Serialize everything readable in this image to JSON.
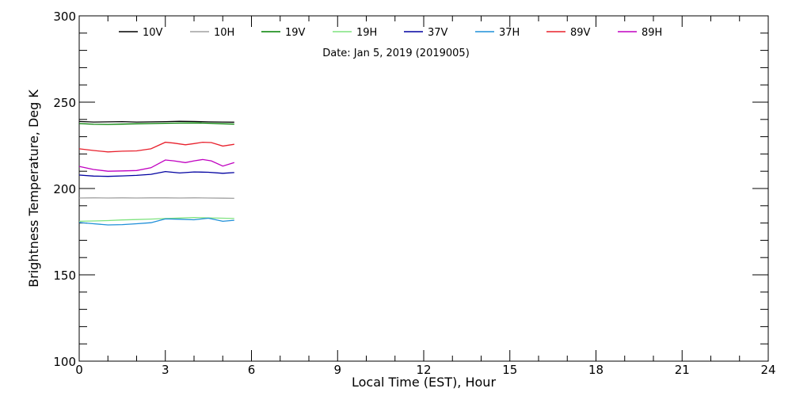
{
  "chart_data": {
    "type": "line",
    "title": "Date: Jan  5, 2019 (2019005)",
    "xlabel": "Local Time (EST), Hour",
    "ylabel": "Brightness Temperature, Deg K",
    "xlim": [
      0,
      24
    ],
    "ylim": [
      100,
      300
    ],
    "xticks": [
      0,
      3,
      6,
      9,
      12,
      15,
      18,
      21,
      24
    ],
    "yticks": [
      100,
      150,
      200,
      250,
      300
    ],
    "grid": false,
    "legend_position": "top",
    "series": [
      {
        "name": "10V",
        "color": "#000000",
        "x": [
          0,
          0.5,
          1,
          1.5,
          2,
          2.5,
          3,
          3.5,
          4,
          4.5,
          5,
          5.4
        ],
        "y": [
          238.8,
          238.5,
          238.6,
          238.7,
          238.5,
          238.6,
          238.7,
          238.9,
          238.8,
          238.6,
          238.5,
          238.4
        ]
      },
      {
        "name": "10H",
        "color": "#a0a0a0",
        "x": [
          0,
          0.5,
          1,
          1.5,
          2,
          2.5,
          3,
          3.5,
          4,
          4.5,
          5,
          5.4
        ],
        "y": [
          194.5,
          194.6,
          194.5,
          194.6,
          194.5,
          194.6,
          194.6,
          194.5,
          194.6,
          194.5,
          194.4,
          194.3
        ]
      },
      {
        "name": "19V",
        "color": "#008000",
        "x": [
          0,
          0.5,
          1,
          1.5,
          2,
          2.5,
          3,
          3.5,
          4,
          4.5,
          5,
          5.4
        ],
        "y": [
          237.6,
          237.2,
          237.1,
          237.3,
          237.5,
          237.6,
          237.8,
          237.9,
          238.0,
          237.8,
          237.5,
          237.3
        ]
      },
      {
        "name": "19H",
        "color": "#7fe37f",
        "x": [
          0,
          0.5,
          1,
          1.5,
          2,
          2.5,
          3,
          3.5,
          4,
          4.5,
          5,
          5.4
        ],
        "y": [
          181.0,
          181.2,
          181.4,
          181.8,
          182.0,
          182.3,
          182.6,
          182.9,
          183.2,
          183.0,
          182.8,
          182.6
        ]
      },
      {
        "name": "37V",
        "color": "#0000a0",
        "x": [
          0,
          0.5,
          1,
          1.5,
          2,
          2.5,
          3,
          3.5,
          4,
          4.5,
          5,
          5.4
        ],
        "y": [
          207.8,
          207.2,
          207.0,
          207.3,
          207.6,
          208.2,
          209.8,
          209.0,
          209.6,
          209.4,
          208.8,
          209.2
        ]
      },
      {
        "name": "37H",
        "color": "#1e8fd8",
        "x": [
          0,
          0.5,
          1,
          1.5,
          2,
          2.5,
          3,
          3.5,
          4,
          4.5,
          5,
          5.4
        ],
        "y": [
          180.3,
          179.6,
          178.9,
          179.1,
          179.6,
          180.2,
          182.4,
          182.2,
          181.9,
          182.8,
          181.0,
          181.6
        ]
      },
      {
        "name": "89V",
        "color": "#e8202c",
        "x": [
          0,
          0.5,
          1,
          1.5,
          2,
          2.5,
          3,
          3.3,
          3.7,
          4,
          4.3,
          4.6,
          5,
          5.4
        ],
        "y": [
          223.0,
          222.0,
          221.2,
          221.6,
          221.8,
          223.0,
          226.8,
          226.3,
          225.3,
          226.0,
          226.8,
          226.6,
          224.6,
          225.6
        ]
      },
      {
        "name": "89H",
        "color": "#c000c0",
        "x": [
          0,
          0.5,
          1,
          1.5,
          2,
          2.5,
          3,
          3.3,
          3.7,
          4,
          4.3,
          4.6,
          5,
          5.4
        ],
        "y": [
          212.8,
          211.0,
          210.0,
          210.2,
          210.4,
          212.0,
          216.5,
          216.0,
          215.0,
          216.0,
          216.8,
          216.0,
          213.0,
          215.0
        ]
      }
    ]
  }
}
